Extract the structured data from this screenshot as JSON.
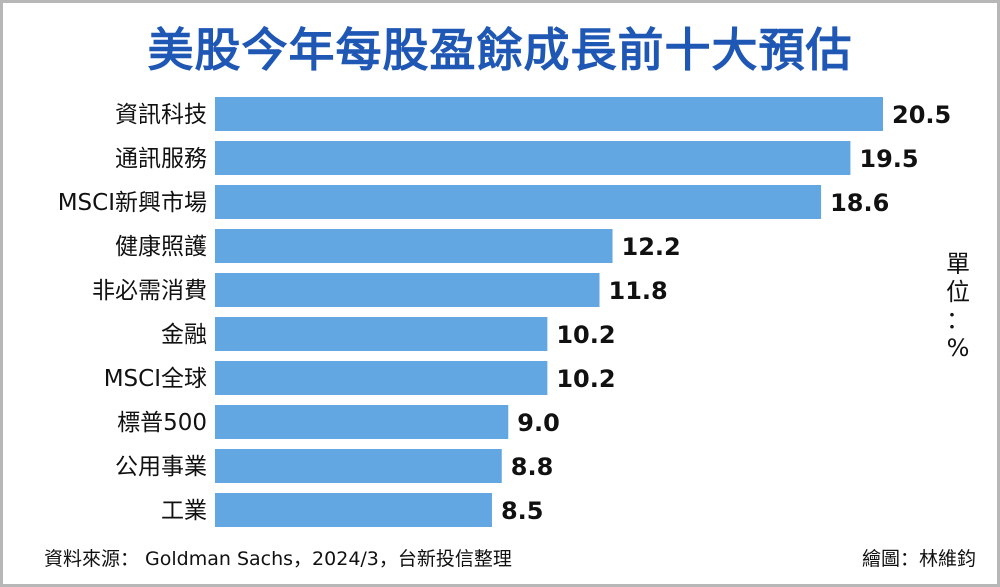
{
  "title": "美股今年每股盈餘成長前十大預估",
  "unit": [
    "單",
    "位",
    "：",
    "%"
  ],
  "footer": {
    "source": "資料來源： Goldman Sachs，2024/3，台新投信整理",
    "credit": "繪圖：林維鈞"
  },
  "colors": {
    "bar": "#62a7e2",
    "title": "#1f57b5"
  },
  "chart_data": {
    "type": "bar",
    "orientation": "horizontal",
    "title": "美股今年每股盈餘成長前十大預估",
    "unit": "單位：%",
    "categories": [
      "資訊科技",
      "通訊服務",
      "MSCI新興市場",
      "健康照護",
      "非必需消費",
      "金融",
      "MSCI全球",
      "標普500",
      "公用事業",
      "工業"
    ],
    "values": [
      20.5,
      19.5,
      18.6,
      12.2,
      11.8,
      10.2,
      10.2,
      9.0,
      8.8,
      8.5
    ],
    "value_labels": [
      "20.5",
      "19.5",
      "18.6",
      "12.2",
      "11.8",
      "10.2",
      "10.2",
      "9.0",
      "8.8",
      "8.5"
    ],
    "xlim": [
      0,
      20.5
    ],
    "grid": false,
    "legend": "none"
  }
}
